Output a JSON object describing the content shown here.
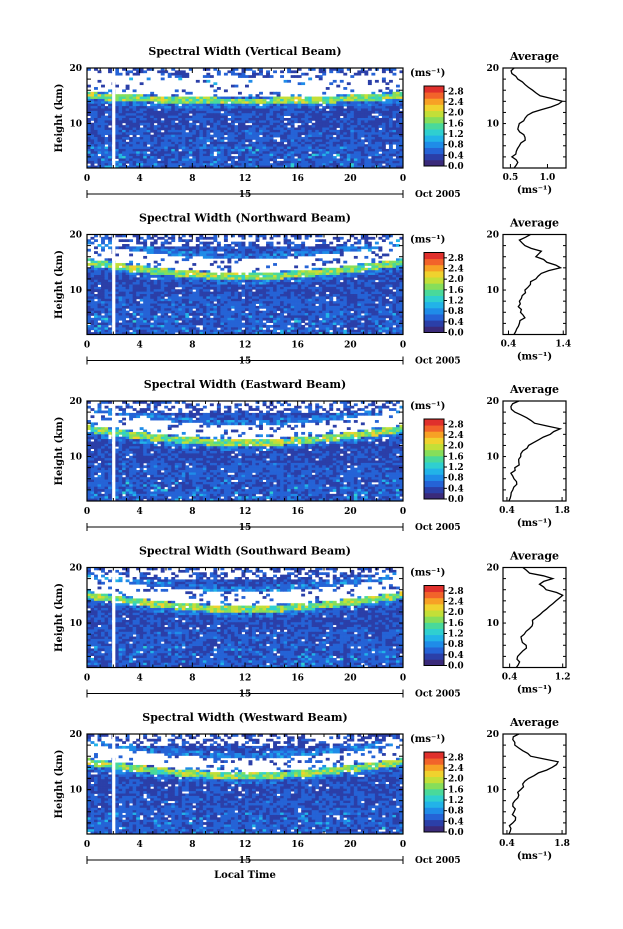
{
  "colors": {
    "colorbar": [
      "#3a2a7a",
      "#2b3fa8",
      "#2563d6",
      "#1f8ce8",
      "#22b3e8",
      "#2fcfd0",
      "#49d99b",
      "#86de5a",
      "#c3df38",
      "#f0d22e",
      "#f7a125",
      "#f2632a",
      "#e0302c"
    ],
    "line": "#000000"
  },
  "chart_data": [
    {
      "type": "heatmap",
      "title": "Spectral Width (Vertical Beam)",
      "ylabel": "Height (km)",
      "xticks": [
        "0",
        "4",
        "8",
        "12",
        "16",
        "20",
        "0"
      ],
      "yticks": [
        "20",
        "10"
      ],
      "date_day": "15",
      "date_label": "Oct 2005",
      "colorbar": {
        "unit": "(ms⁻¹)",
        "ticks": [
          "0.0",
          "0.4",
          "0.8",
          "1.2",
          "1.6",
          "2.0",
          "2.4",
          "2.8"
        ],
        "range": [
          0,
          3.0
        ]
      },
      "profile": {
        "title": "Average",
        "yticks": [
          "20",
          "10"
        ],
        "xticks": [
          "0.5",
          "1.0"
        ],
        "xlabel": "(ms⁻¹)",
        "xlim": [
          0.4,
          1.25
        ],
        "ylim": [
          2,
          20
        ],
        "height": [
          2,
          3,
          4,
          5,
          6,
          7,
          8,
          9,
          10,
          11,
          12,
          13,
          14,
          15,
          16,
          17,
          18,
          19,
          20
        ],
        "value": [
          0.55,
          0.6,
          0.52,
          0.58,
          0.62,
          0.7,
          0.68,
          0.6,
          0.62,
          0.7,
          0.8,
          1.05,
          1.2,
          0.9,
          0.8,
          0.7,
          0.6,
          0.52,
          0.55
        ]
      }
    },
    {
      "type": "heatmap",
      "title": "Spectral Width (Northward Beam)",
      "ylabel": "Height (km)",
      "xticks": [
        "0",
        "4",
        "8",
        "12",
        "16",
        "20",
        "0"
      ],
      "yticks": [
        "20",
        "10"
      ],
      "date_day": "15",
      "date_label": "Oct 2005",
      "colorbar": {
        "unit": "(ms⁻¹)",
        "ticks": [
          "0.0",
          "0.4",
          "0.8",
          "1.2",
          "1.6",
          "2.0",
          "2.4",
          "2.8"
        ],
        "range": [
          0,
          3.0
        ]
      },
      "profile": {
        "title": "Average",
        "yticks": [
          "20",
          "10"
        ],
        "xticks": [
          "0.4",
          "1.4"
        ],
        "xlabel": "(ms⁻¹)",
        "xlim": [
          0.3,
          1.45
        ],
        "ylim": [
          2,
          20
        ],
        "height": [
          2,
          3,
          4,
          5,
          6,
          7,
          8,
          9,
          10,
          11,
          12,
          13,
          14,
          15,
          16,
          17,
          18,
          19,
          20
        ],
        "value": [
          0.5,
          0.55,
          0.6,
          0.7,
          0.62,
          0.58,
          0.6,
          0.65,
          0.7,
          0.8,
          0.9,
          1.0,
          1.35,
          1.1,
          0.9,
          1.0,
          0.7,
          0.6,
          0.8
        ]
      }
    },
    {
      "type": "heatmap",
      "title": "Spectral Width (Eastward Beam)",
      "ylabel": "Height (km)",
      "xticks": [
        "0",
        "4",
        "8",
        "12",
        "16",
        "20",
        "0"
      ],
      "yticks": [
        "20",
        "10"
      ],
      "date_day": "15",
      "date_label": "Oct 2005",
      "colorbar": {
        "unit": "(ms⁻¹)",
        "ticks": [
          "0.0",
          "0.4",
          "0.8",
          "1.2",
          "1.6",
          "2.0",
          "2.4",
          "2.8"
        ],
        "range": [
          0,
          3.0
        ]
      },
      "profile": {
        "title": "Average",
        "yticks": [
          "20",
          "10"
        ],
        "xticks": [
          "0.4",
          "1.8"
        ],
        "xlabel": "(ms⁻¹)",
        "xlim": [
          0.3,
          1.9
        ],
        "ylim": [
          2,
          20
        ],
        "height": [
          2,
          3,
          4,
          5,
          6,
          7,
          8,
          9,
          10,
          11,
          12,
          13,
          14,
          15,
          16,
          17,
          18,
          19,
          20
        ],
        "value": [
          0.45,
          0.5,
          0.55,
          0.65,
          0.58,
          0.5,
          0.6,
          0.7,
          0.75,
          0.8,
          0.95,
          1.2,
          1.5,
          1.75,
          1.1,
          0.9,
          0.6,
          0.5,
          0.7
        ]
      }
    },
    {
      "type": "heatmap",
      "title": "Spectral Width (Southward Beam)",
      "ylabel": "Height (km)",
      "xticks": [
        "0",
        "4",
        "8",
        "12",
        "16",
        "20",
        "0"
      ],
      "yticks": [
        "20",
        "10"
      ],
      "date_day": "15",
      "date_label": "Oct 2005",
      "colorbar": {
        "unit": "(ms⁻¹)",
        "ticks": [
          "0.0",
          "0.4",
          "0.8",
          "1.2",
          "1.6",
          "2.0",
          "2.4",
          "2.8"
        ],
        "range": [
          0,
          3.0
        ]
      },
      "profile": {
        "title": "Average",
        "yticks": [
          "20",
          "10"
        ],
        "xticks": [
          "0.4",
          "1.2"
        ],
        "xlabel": "(ms⁻¹)",
        "xlim": [
          0.3,
          1.25
        ],
        "ylim": [
          2,
          20
        ],
        "height": [
          2,
          3,
          4,
          5,
          6,
          7,
          8,
          9,
          10,
          11,
          12,
          13,
          14,
          15,
          16,
          17,
          18,
          19,
          20
        ],
        "value": [
          0.5,
          0.55,
          0.52,
          0.6,
          0.65,
          0.58,
          0.62,
          0.7,
          0.75,
          0.8,
          0.9,
          1.0,
          1.1,
          1.2,
          0.95,
          0.85,
          1.05,
          0.7,
          0.6
        ]
      }
    },
    {
      "type": "heatmap",
      "title": "Spectral Width (Westward Beam)",
      "ylabel": "Height (km)",
      "xticks": [
        "0",
        "4",
        "8",
        "12",
        "16",
        "20",
        "0"
      ],
      "yticks": [
        "20",
        "10"
      ],
      "date_day": "15",
      "date_label": "Oct 2005",
      "xlabel": "Local Time",
      "colorbar": {
        "unit": "(ms⁻¹)",
        "ticks": [
          "0.0",
          "0.4",
          "0.8",
          "1.2",
          "1.6",
          "2.0",
          "2.4",
          "2.8"
        ],
        "range": [
          0,
          3.0
        ]
      },
      "profile": {
        "title": "Average",
        "yticks": [
          "20",
          "10"
        ],
        "xticks": [
          "0.4",
          "1.8"
        ],
        "xlabel": "(ms⁻¹)",
        "xlim": [
          0.3,
          1.9
        ],
        "ylim": [
          2,
          20
        ],
        "height": [
          2,
          3,
          4,
          5,
          6,
          7,
          8,
          9,
          10,
          11,
          12,
          13,
          14,
          15,
          16,
          17,
          18,
          19,
          20
        ],
        "value": [
          0.45,
          0.5,
          0.55,
          0.62,
          0.58,
          0.55,
          0.6,
          0.7,
          0.75,
          0.8,
          0.95,
          1.2,
          1.55,
          1.7,
          1.0,
          0.8,
          0.6,
          0.55,
          0.7
        ]
      }
    }
  ]
}
